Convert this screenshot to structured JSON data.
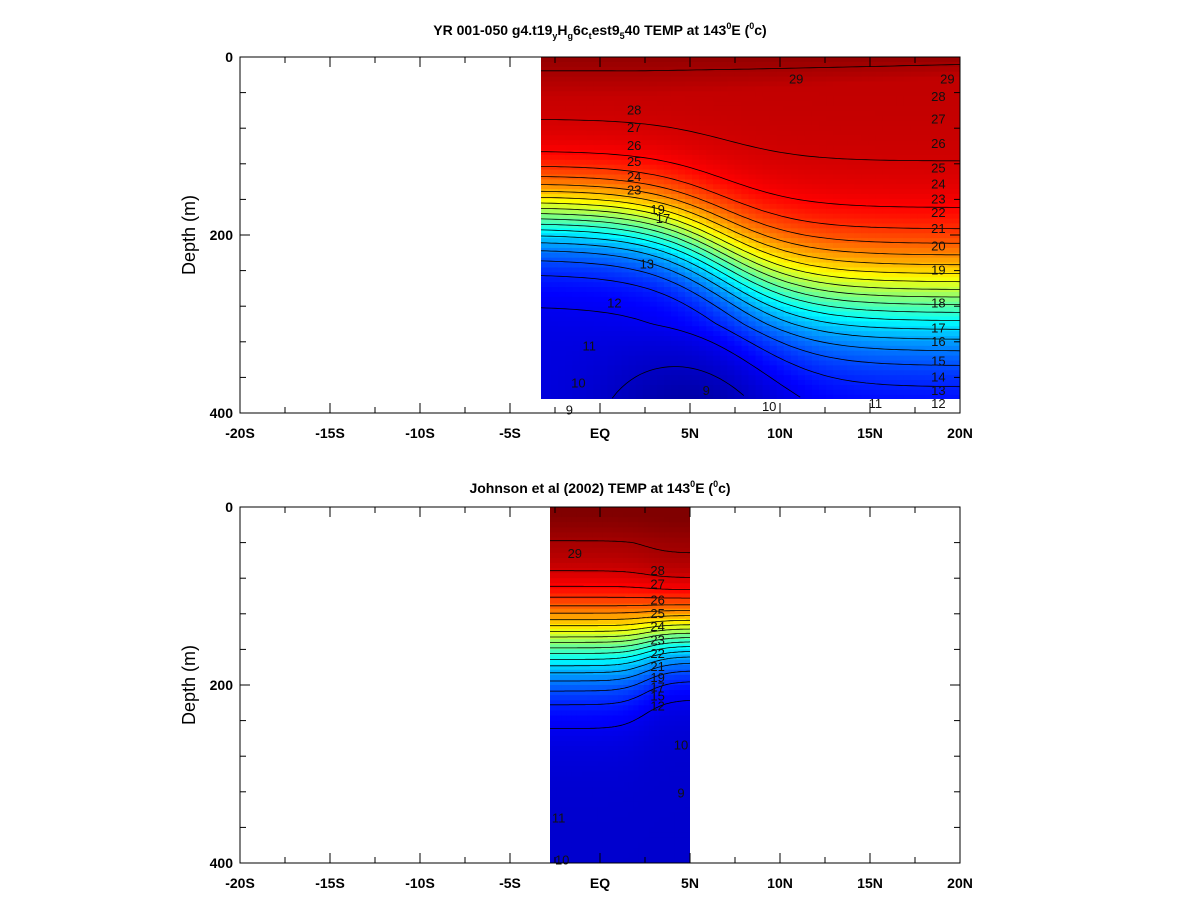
{
  "chart_data": [
    {
      "type": "contour",
      "title": {
        "prefix": "YR 001-050 g4.t19",
        "sub1": "y",
        "mid1": "H",
        "sub2": "g",
        "mid2": "6c",
        "sub3": "t",
        "mid3": "est9",
        "sub4": "5",
        "mid4": "40 TEMP at 143",
        "sup1": "0",
        "mid5": "E (",
        "sup2": "0",
        "suffix": "c)"
      },
      "ylabel": "Depth (m)",
      "y_ticklabels": [
        "0",
        "200",
        "400"
      ],
      "x_ticklabels": [
        "-20S",
        "-15S",
        "-10S",
        "-5S",
        "EQ",
        "5N",
        "10N",
        "15N",
        "20N"
      ],
      "xlim": [
        -20,
        20
      ],
      "ylim": [
        0,
        400
      ],
      "data_extent": {
        "lat": [
          -3.5,
          20
        ],
        "depth": [
          0,
          385
        ]
      },
      "levels": [
        8,
        9,
        10,
        11,
        12,
        13,
        14,
        15,
        16,
        17,
        18,
        19,
        20,
        21,
        22,
        23,
        24,
        25,
        26,
        27,
        28,
        29
      ],
      "contour_labels": [
        {
          "lat": 10.9,
          "depth": 25,
          "text": "29"
        },
        {
          "lat": 19.3,
          "depth": 25,
          "text": "29"
        },
        {
          "lat": 18.8,
          "depth": 45,
          "text": "28"
        },
        {
          "lat": 18.8,
          "depth": 70,
          "text": "27"
        },
        {
          "lat": 18.8,
          "depth": 98,
          "text": "26"
        },
        {
          "lat": 18.8,
          "depth": 125,
          "text": "25"
        },
        {
          "lat": 18.8,
          "depth": 143,
          "text": "24"
        },
        {
          "lat": 18.8,
          "depth": 160,
          "text": "23"
        },
        {
          "lat": 18.8,
          "depth": 175,
          "text": "22"
        },
        {
          "lat": 18.8,
          "depth": 193,
          "text": "21"
        },
        {
          "lat": 18.8,
          "depth": 213,
          "text": "20"
        },
        {
          "lat": 18.8,
          "depth": 240,
          "text": "19"
        },
        {
          "lat": 18.8,
          "depth": 277,
          "text": "18"
        },
        {
          "lat": 18.8,
          "depth": 305,
          "text": "17"
        },
        {
          "lat": 18.8,
          "depth": 320,
          "text": "16"
        },
        {
          "lat": 18.8,
          "depth": 342,
          "text": "15"
        },
        {
          "lat": 18.8,
          "depth": 360,
          "text": "14"
        },
        {
          "lat": 18.8,
          "depth": 375,
          "text": "13"
        },
        {
          "lat": 18.8,
          "depth": 390,
          "text": "12"
        },
        {
          "lat": 15.3,
          "depth": 390,
          "text": "11"
        },
        {
          "lat": 9.4,
          "depth": 393,
          "text": "10"
        },
        {
          "lat": 5.9,
          "depth": 375,
          "text": "9"
        },
        {
          "lat": -1.2,
          "depth": 367,
          "text": "10"
        },
        {
          "lat": -0.6,
          "depth": 325,
          "text": "11"
        },
        {
          "lat": 0.8,
          "depth": 277,
          "text": "12"
        },
        {
          "lat": 2.6,
          "depth": 233,
          "text": "13"
        },
        {
          "lat": 3.5,
          "depth": 182,
          "text": "17"
        },
        {
          "lat": 3.2,
          "depth": 172,
          "text": "19"
        },
        {
          "lat": 1.9,
          "depth": 60,
          "text": "28"
        },
        {
          "lat": 1.9,
          "depth": 80,
          "text": "27"
        },
        {
          "lat": 1.9,
          "depth": 100,
          "text": "26"
        },
        {
          "lat": 1.9,
          "depth": 118,
          "text": "25"
        },
        {
          "lat": 1.9,
          "depth": 135,
          "text": "24"
        },
        {
          "lat": 1.9,
          "depth": 150,
          "text": "23"
        },
        {
          "lat": -1.7,
          "depth": 397,
          "text": "9"
        }
      ]
    },
    {
      "type": "contour",
      "title": {
        "prefix": "Johnson et al (2002) TEMP at 143",
        "sup1": "0",
        "mid1": "E (",
        "sup2": "0",
        "suffix": "c)"
      },
      "ylabel": "Depth (m)",
      "y_ticklabels": [
        "0",
        "200",
        "400"
      ],
      "x_ticklabels": [
        "-20S",
        "-15S",
        "-10S",
        "-5S",
        "EQ",
        "5N",
        "10N",
        "15N",
        "20N"
      ],
      "xlim": [
        -20,
        20
      ],
      "ylim": [
        0,
        400
      ],
      "data_extent": {
        "lat": [
          -3,
          5
        ],
        "depth": [
          0,
          400
        ]
      },
      "levels": [
        9,
        10,
        11,
        12,
        13,
        14,
        15,
        16,
        17,
        18,
        19,
        20,
        21,
        22,
        23,
        24,
        25,
        26,
        27,
        28,
        29
      ],
      "contour_labels": [
        {
          "lat": -1.4,
          "depth": 53,
          "text": "29"
        },
        {
          "lat": 3.2,
          "depth": 72,
          "text": "28"
        },
        {
          "lat": 3.2,
          "depth": 87,
          "text": "27"
        },
        {
          "lat": 3.2,
          "depth": 105,
          "text": "26"
        },
        {
          "lat": 3.2,
          "depth": 120,
          "text": "25"
        },
        {
          "lat": 3.2,
          "depth": 135,
          "text": "24"
        },
        {
          "lat": 3.2,
          "depth": 150,
          "text": "23"
        },
        {
          "lat": 3.2,
          "depth": 165,
          "text": "22"
        },
        {
          "lat": 3.2,
          "depth": 180,
          "text": "21"
        },
        {
          "lat": 3.2,
          "depth": 192,
          "text": "19"
        },
        {
          "lat": 3.2,
          "depth": 203,
          "text": "17"
        },
        {
          "lat": 3.2,
          "depth": 213,
          "text": "15"
        },
        {
          "lat": 3.2,
          "depth": 224,
          "text": "12"
        },
        {
          "lat": 4.5,
          "depth": 268,
          "text": "10"
        },
        {
          "lat": 4.5,
          "depth": 322,
          "text": "9"
        },
        {
          "lat": -2.3,
          "depth": 350,
          "text": "11"
        },
        {
          "lat": -2.1,
          "depth": 397,
          "text": "10"
        }
      ]
    }
  ]
}
